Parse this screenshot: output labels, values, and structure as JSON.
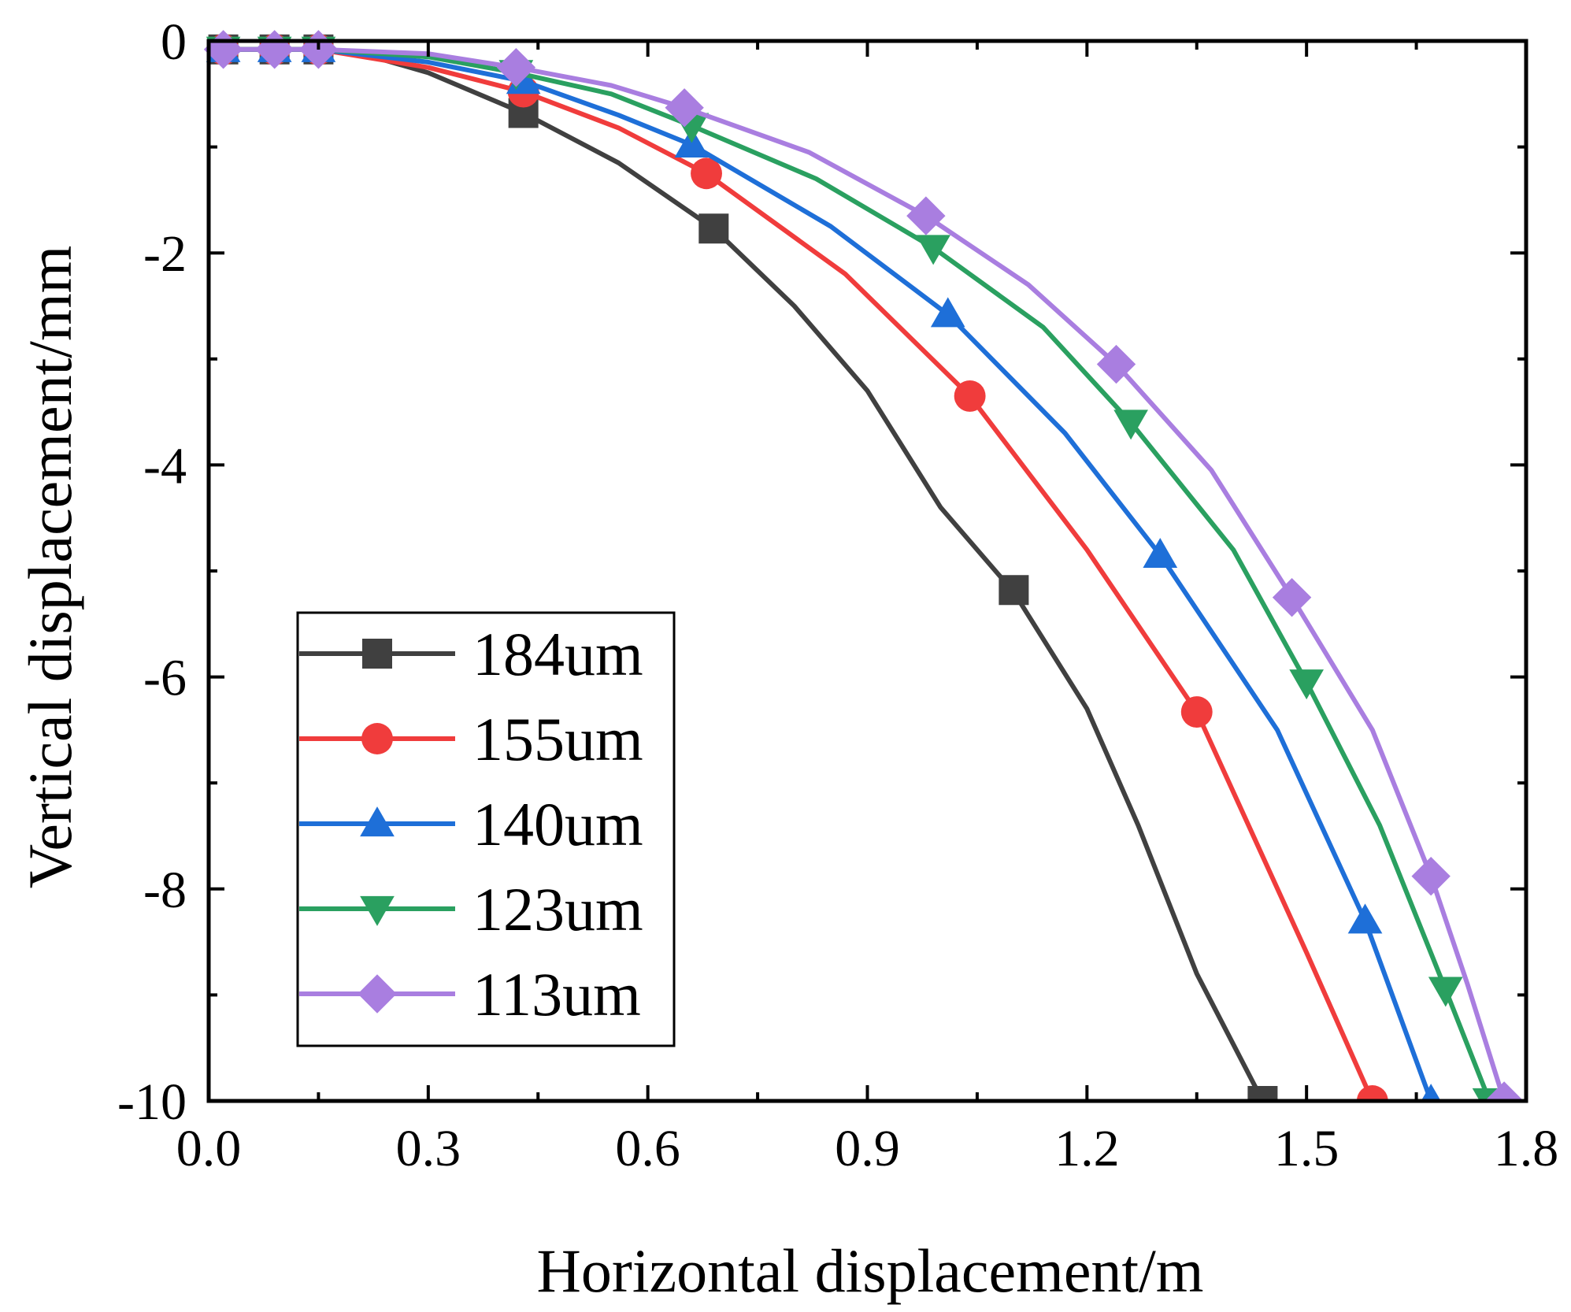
{
  "chart_data": {
    "type": "line",
    "title": "",
    "xlabel": "Horizontal displacement/m",
    "ylabel": "Vertical displacement/mm",
    "xlim": [
      0.0,
      1.8
    ],
    "ylim": [
      -10,
      0
    ],
    "x_ticks": [
      "0.0",
      "0.3",
      "0.6",
      "0.9",
      "1.2",
      "1.5",
      "1.8"
    ],
    "y_ticks": [
      "0",
      "-2",
      "-4",
      "-6",
      "-8",
      "-10"
    ],
    "grid": false,
    "legend_position": "bottom-left",
    "series": [
      {
        "name": "184um",
        "color": "#404040",
        "marker": "square",
        "line": [
          [
            0.02,
            -0.08
          ],
          [
            0.09,
            -0.08
          ],
          [
            0.15,
            -0.08
          ],
          [
            0.2,
            -0.1
          ],
          [
            0.3,
            -0.3
          ],
          [
            0.43,
            -0.68
          ],
          [
            0.56,
            -1.15
          ],
          [
            0.69,
            -1.77
          ],
          [
            0.8,
            -2.5
          ],
          [
            0.9,
            -3.3
          ],
          [
            1.0,
            -4.4
          ],
          [
            1.1,
            -5.2
          ],
          [
            1.2,
            -6.3
          ],
          [
            1.27,
            -7.4
          ],
          [
            1.35,
            -8.8
          ],
          [
            1.44,
            -10.0
          ]
        ],
        "markers": [
          [
            0.02,
            -0.08
          ],
          [
            0.09,
            -0.08
          ],
          [
            0.15,
            -0.08
          ],
          [
            0.43,
            -0.68
          ],
          [
            0.69,
            -1.77
          ],
          [
            1.1,
            -5.18
          ],
          [
            1.44,
            -10.0
          ]
        ]
      },
      {
        "name": "155um",
        "color": "#f03c3c",
        "marker": "circle",
        "line": [
          [
            0.02,
            -0.08
          ],
          [
            0.09,
            -0.08
          ],
          [
            0.15,
            -0.08
          ],
          [
            0.3,
            -0.25
          ],
          [
            0.43,
            -0.48
          ],
          [
            0.56,
            -0.82
          ],
          [
            0.68,
            -1.25
          ],
          [
            0.87,
            -2.2
          ],
          [
            1.04,
            -3.35
          ],
          [
            1.2,
            -4.8
          ],
          [
            1.35,
            -6.33
          ],
          [
            1.5,
            -8.6
          ],
          [
            1.59,
            -10.0
          ]
        ],
        "markers": [
          [
            0.02,
            -0.08
          ],
          [
            0.09,
            -0.08
          ],
          [
            0.15,
            -0.08
          ],
          [
            0.43,
            -0.48
          ],
          [
            0.68,
            -1.25
          ],
          [
            1.04,
            -3.35
          ],
          [
            1.35,
            -6.33
          ],
          [
            1.59,
            -10.0
          ]
        ]
      },
      {
        "name": "140um",
        "color": "#1e6fd8",
        "marker": "triangle-up",
        "line": [
          [
            0.02,
            -0.08
          ],
          [
            0.09,
            -0.08
          ],
          [
            0.15,
            -0.08
          ],
          [
            0.3,
            -0.2
          ],
          [
            0.43,
            -0.38
          ],
          [
            0.56,
            -0.7
          ],
          [
            0.66,
            -0.98
          ],
          [
            0.85,
            -1.75
          ],
          [
            1.01,
            -2.58
          ],
          [
            1.17,
            -3.7
          ],
          [
            1.3,
            -4.85
          ],
          [
            1.46,
            -6.5
          ],
          [
            1.58,
            -8.3
          ],
          [
            1.67,
            -10.0
          ]
        ],
        "markers": [
          [
            0.02,
            -0.08
          ],
          [
            0.09,
            -0.08
          ],
          [
            0.15,
            -0.08
          ],
          [
            0.43,
            -0.38
          ],
          [
            0.66,
            -0.98
          ],
          [
            1.01,
            -2.58
          ],
          [
            1.3,
            -4.85
          ],
          [
            1.58,
            -8.3
          ],
          [
            1.67,
            -10.0
          ]
        ]
      },
      {
        "name": "123um",
        "color": "#2aa060",
        "marker": "triangle-down",
        "line": [
          [
            0.02,
            -0.08
          ],
          [
            0.09,
            -0.08
          ],
          [
            0.15,
            -0.08
          ],
          [
            0.3,
            -0.15
          ],
          [
            0.42,
            -0.3
          ],
          [
            0.55,
            -0.5
          ],
          [
            0.66,
            -0.8
          ],
          [
            0.83,
            -1.3
          ],
          [
            0.99,
            -1.95
          ],
          [
            1.14,
            -2.7
          ],
          [
            1.26,
            -3.6
          ],
          [
            1.4,
            -4.8
          ],
          [
            1.5,
            -6.05
          ],
          [
            1.6,
            -7.4
          ],
          [
            1.69,
            -8.95
          ],
          [
            1.75,
            -10.0
          ]
        ],
        "markers": [
          [
            0.02,
            -0.08
          ],
          [
            0.09,
            -0.08
          ],
          [
            0.15,
            -0.08
          ],
          [
            0.42,
            -0.3
          ],
          [
            0.66,
            -0.8
          ],
          [
            0.99,
            -1.95
          ],
          [
            1.26,
            -3.6
          ],
          [
            1.5,
            -6.05
          ],
          [
            1.69,
            -8.95
          ],
          [
            1.75,
            -10.0
          ]
        ]
      },
      {
        "name": "113um",
        "color": "#a97ee0",
        "marker": "diamond",
        "line": [
          [
            0.02,
            -0.08
          ],
          [
            0.09,
            -0.08
          ],
          [
            0.15,
            -0.08
          ],
          [
            0.3,
            -0.12
          ],
          [
            0.42,
            -0.25
          ],
          [
            0.55,
            -0.42
          ],
          [
            0.65,
            -0.63
          ],
          [
            0.82,
            -1.05
          ],
          [
            0.98,
            -1.65
          ],
          [
            1.12,
            -2.3
          ],
          [
            1.24,
            -3.05
          ],
          [
            1.37,
            -4.05
          ],
          [
            1.48,
            -5.25
          ],
          [
            1.59,
            -6.5
          ],
          [
            1.67,
            -7.88
          ],
          [
            1.72,
            -8.9
          ],
          [
            1.77,
            -10.0
          ]
        ],
        "markers": [
          [
            0.02,
            -0.08
          ],
          [
            0.09,
            -0.08
          ],
          [
            0.15,
            -0.08
          ],
          [
            0.42,
            -0.25
          ],
          [
            0.65,
            -0.63
          ],
          [
            0.98,
            -1.65
          ],
          [
            1.24,
            -3.05
          ],
          [
            1.48,
            -5.25
          ],
          [
            1.67,
            -7.88
          ],
          [
            1.77,
            -10.0
          ]
        ]
      }
    ]
  }
}
